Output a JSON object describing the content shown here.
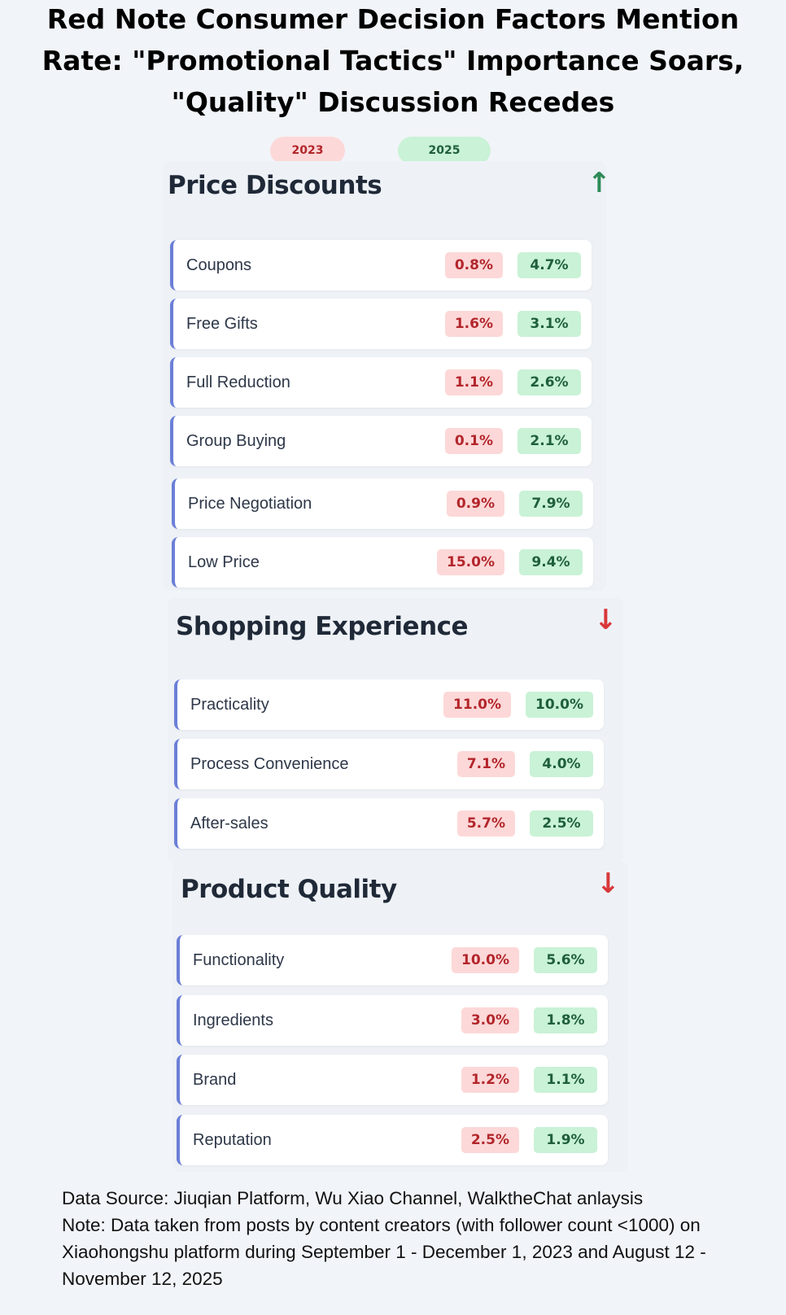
{
  "title": "Red Note Consumer Decision Factors Mention Rate: \"Promotional Tactics\" Importance Soars, \"Quality\" Discussion Recedes",
  "legend": [
    "2023",
    "2025"
  ],
  "colors": {
    "red_2023": "#b3262b",
    "green_2025": "#1f5f3a",
    "up": "#2e8b57",
    "down": "#d9383a",
    "accent": "#6b7fd7"
  },
  "chart_data": {
    "type": "table",
    "title": "Red Note Consumer Decision Factors Mention Rate: \"Promotional Tactics\" Importance Soars, \"Quality\" Discussion Recedes",
    "columns": [
      "2023",
      "2025"
    ],
    "unit": "%",
    "sections": [
      {
        "name": "Price Discounts",
        "trend": "up",
        "trend_icon": "arrow-up-icon",
        "arrow": "↑",
        "rows": [
          {
            "label": "Coupons",
            "v2023": "0.8%",
            "v2025": "4.7%"
          },
          {
            "label": "Free Gifts",
            "v2023": "1.6%",
            "v2025": "3.1%"
          },
          {
            "label": "Full Reduction",
            "v2023": "1.1%",
            "v2025": "2.6%"
          },
          {
            "label": "Group Buying",
            "v2023": "0.1%",
            "v2025": "2.1%"
          },
          {
            "label": "Price Negotiation",
            "v2023": "0.9%",
            "v2025": "7.9%"
          },
          {
            "label": "Low Price",
            "v2023": "15.0%",
            "v2025": "9.4%"
          }
        ]
      },
      {
        "name": "Shopping Experience",
        "trend": "down",
        "trend_icon": "arrow-down-icon",
        "arrow": "↓",
        "rows": [
          {
            "label": "Practicality",
            "v2023": "11.0%",
            "v2025": "10.0%"
          },
          {
            "label": "Process Convenience",
            "v2023": "7.1%",
            "v2025": "4.0%"
          },
          {
            "label": "After-sales",
            "v2023": "5.7%",
            "v2025": "2.5%"
          }
        ]
      },
      {
        "name": "Product Quality",
        "trend": "down",
        "trend_icon": "arrow-down-icon",
        "arrow": "↓",
        "rows": [
          {
            "label": "Functionality",
            "v2023": "10.0%",
            "v2025": "5.6%"
          },
          {
            "label": "Ingredients",
            "v2023": "3.0%",
            "v2025": "1.8%"
          },
          {
            "label": "Brand",
            "v2023": "1.2%",
            "v2025": "1.1%"
          },
          {
            "label": "Reputation",
            "v2023": "2.5%",
            "v2025": "1.9%"
          }
        ]
      }
    ]
  },
  "footer": {
    "source": "Data Source: Jiuqian Platform, Wu Xiao Channel, WalktheChat anlaysis",
    "note": "Note: Data taken from posts by content creators (with follower count <1000) on Xiaohongshu platform during September 1 - December 1, 2023 and August 12 - November 12, 2025"
  }
}
